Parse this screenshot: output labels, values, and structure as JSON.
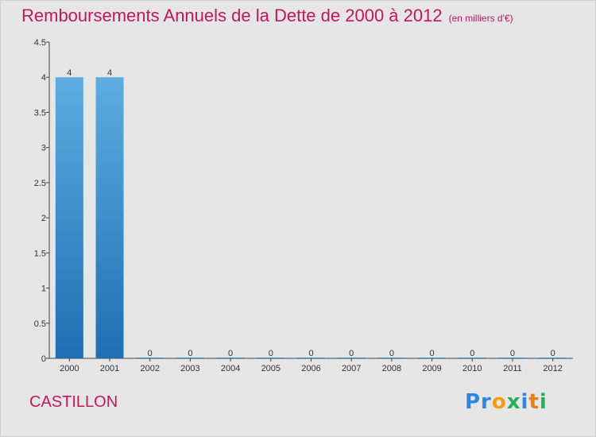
{
  "title": "Remboursements Annuels de la Dette de 2000 à 2012",
  "subtitle": "(en milliers d'€)",
  "commune": "CASTILLON",
  "logo": {
    "text": "Proxiti",
    "parts": [
      "Pr",
      "o",
      "x",
      "i",
      "t",
      "i"
    ]
  },
  "colors": {
    "title": "#c2185b",
    "bar_top": "#5dade2",
    "bar_bottom": "#1f6fb2",
    "background": "#e6e6e6"
  },
  "chart_data": {
    "type": "bar",
    "title": "Remboursements Annuels de la Dette de 2000 à 2012",
    "subtitle": "(en milliers d'€)",
    "xlabel": "",
    "ylabel": "",
    "categories": [
      "2000",
      "2001",
      "2002",
      "2003",
      "2004",
      "2005",
      "2006",
      "2007",
      "2008",
      "2009",
      "2010",
      "2011",
      "2012"
    ],
    "values": [
      4,
      4,
      0,
      0,
      0,
      0,
      0,
      0,
      0,
      0,
      0,
      0,
      0
    ],
    "data_labels": [
      "4",
      "4",
      "0",
      "0",
      "0",
      "0",
      "0",
      "0",
      "0",
      "0",
      "0",
      "0",
      "0"
    ],
    "ylim": [
      0,
      4.5
    ],
    "yticks": [
      0,
      0.5,
      1,
      1.5,
      2,
      2.5,
      3,
      3.5,
      4,
      4.5
    ],
    "ytick_labels": [
      "0",
      "0.5",
      "1",
      "1.5",
      "2",
      "2.5",
      "3",
      "3.5",
      "4",
      "4.5"
    ],
    "grid": false,
    "legend": "none"
  }
}
